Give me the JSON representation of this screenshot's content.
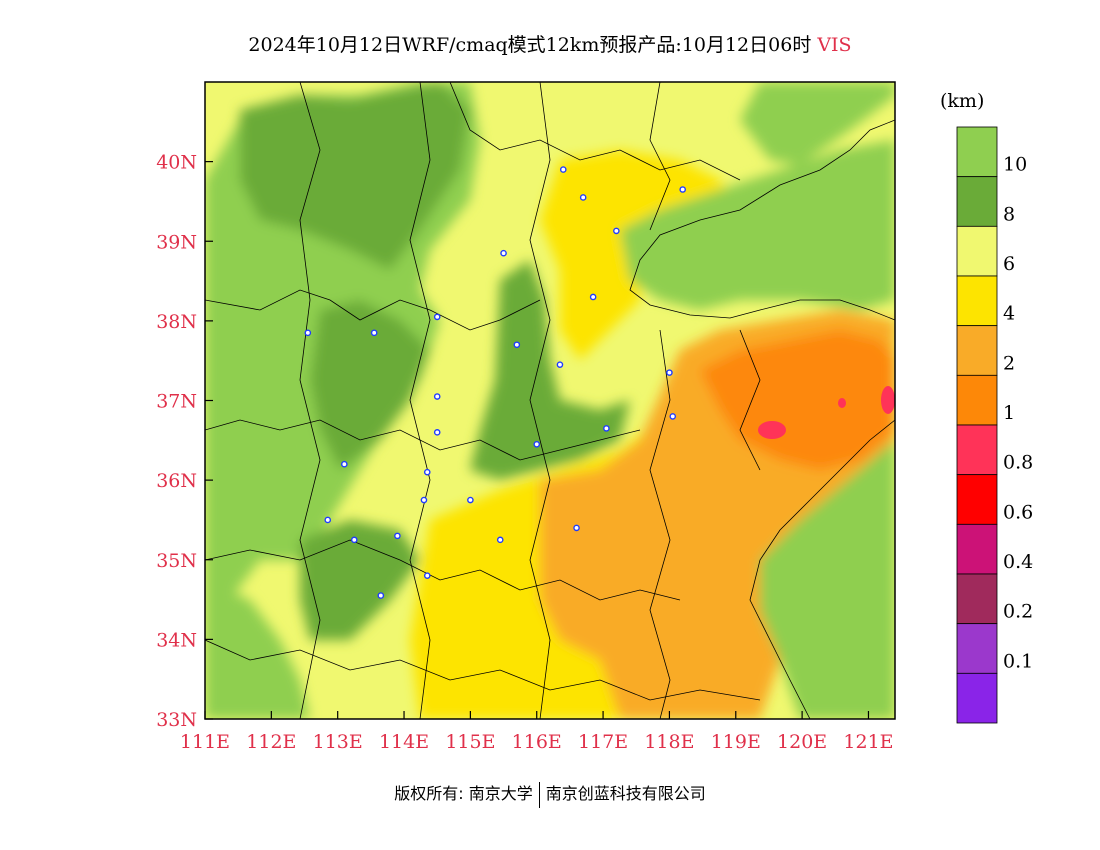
{
  "title": {
    "main": "2024年10月12日WRF/cmaq模式12km预报产品:10月12日06时",
    "variable": "VIS"
  },
  "colorbar": {
    "unit": "(km)",
    "levels": [
      "10",
      "8",
      "6",
      "4",
      "2",
      "1",
      "0.8",
      "0.6",
      "0.4",
      "0.2",
      "0.1"
    ],
    "colors": [
      "#8fcf50",
      "#6aab38",
      "#f0f870",
      "#fde400",
      "#f9ab28",
      "#fd8808",
      "#ff3358",
      "#ff0000",
      "#cc1277",
      "#a02a5c",
      "#9b38cc",
      "#8a24e8"
    ]
  },
  "axes": {
    "lon_labels": [
      "111E",
      "112E",
      "113E",
      "114E",
      "115E",
      "116E",
      "117E",
      "118E",
      "119E",
      "120E",
      "121E"
    ],
    "lat_labels": [
      "33N",
      "34N",
      "35N",
      "36N",
      "37N",
      "38N",
      "39N",
      "40N"
    ],
    "label_color": "#e0304a"
  },
  "chart_data": {
    "type": "heatmap",
    "variable": "VIS",
    "unit": "km",
    "lon_range": [
      111,
      121.4
    ],
    "lat_range": [
      33,
      41
    ],
    "level_bounds": [
      0.1,
      0.2,
      0.4,
      0.6,
      0.8,
      1,
      2,
      4,
      6,
      8,
      10
    ],
    "city_markers": [
      {
        "lon": 116.4,
        "lat": 39.9
      },
      {
        "lon": 118.2,
        "lat": 39.65
      },
      {
        "lon": 116.7,
        "lat": 39.55
      },
      {
        "lon": 117.2,
        "lat": 39.13
      },
      {
        "lon": 115.5,
        "lat": 38.85
      },
      {
        "lon": 116.85,
        "lat": 38.3
      },
      {
        "lon": 114.5,
        "lat": 38.05
      },
      {
        "lon": 112.55,
        "lat": 37.85
      },
      {
        "lon": 113.55,
        "lat": 37.85
      },
      {
        "lon": 115.7,
        "lat": 37.7
      },
      {
        "lon": 116.35,
        "lat": 37.45
      },
      {
        "lon": 118.0,
        "lat": 37.35
      },
      {
        "lon": 114.5,
        "lat": 37.05
      },
      {
        "lon": 118.05,
        "lat": 36.8
      },
      {
        "lon": 117.05,
        "lat": 36.65
      },
      {
        "lon": 114.5,
        "lat": 36.6
      },
      {
        "lon": 116.0,
        "lat": 36.45
      },
      {
        "lon": 113.1,
        "lat": 36.2
      },
      {
        "lon": 114.35,
        "lat": 36.1
      },
      {
        "lon": 114.3,
        "lat": 35.75
      },
      {
        "lon": 115.0,
        "lat": 35.75
      },
      {
        "lon": 112.85,
        "lat": 35.5
      },
      {
        "lon": 116.6,
        "lat": 35.4
      },
      {
        "lon": 113.9,
        "lat": 35.3
      },
      {
        "lon": 113.25,
        "lat": 35.25
      },
      {
        "lon": 115.45,
        "lat": 35.25
      },
      {
        "lon": 114.35,
        "lat": 34.8
      },
      {
        "lon": 113.65,
        "lat": 34.55
      }
    ]
  },
  "footer": {
    "left": "版权所有: 南京大学",
    "right": "南京创蓝科技有限公司"
  }
}
